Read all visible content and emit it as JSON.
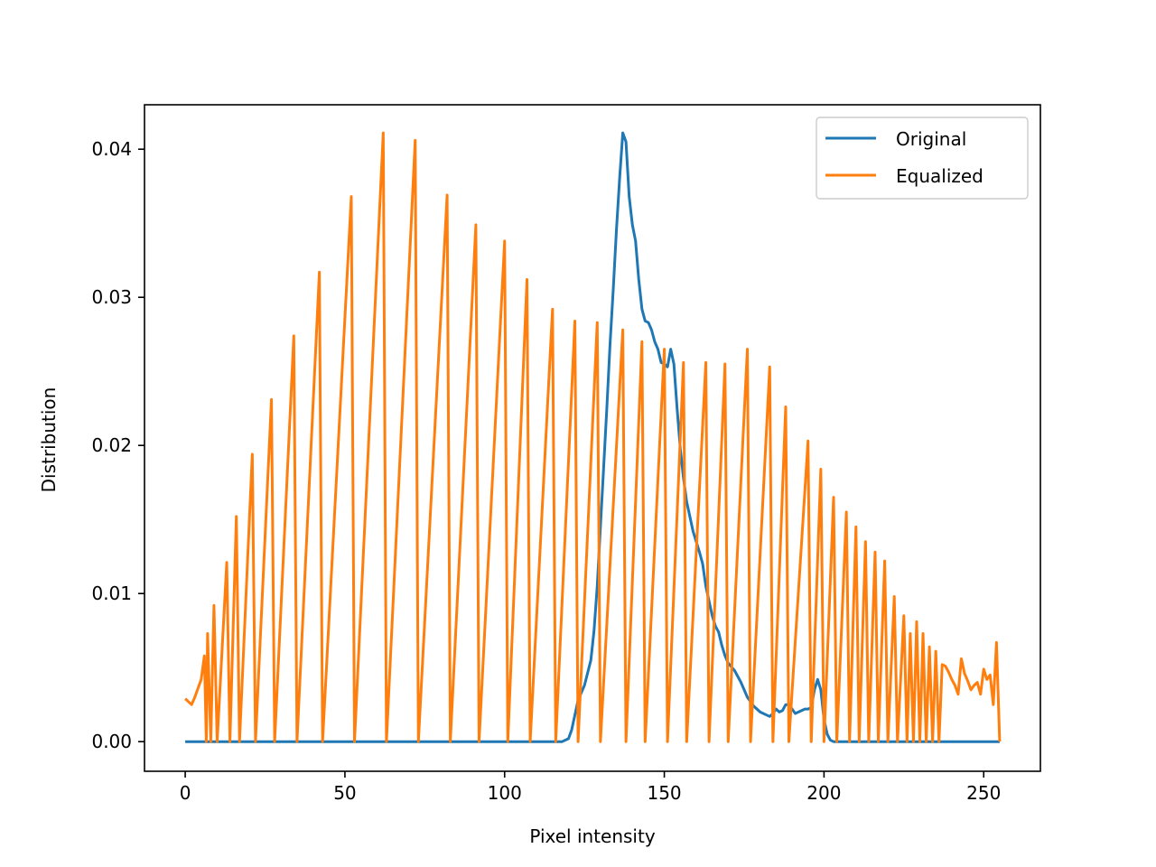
{
  "chart_data": {
    "type": "line",
    "title": "",
    "xlabel": "Pixel intensity",
    "ylabel": "Distribution",
    "xlim": [
      -12.75,
      267.75
    ],
    "ylim": [
      -0.002,
      0.043
    ],
    "x_ticks": [
      0,
      50,
      100,
      150,
      200,
      250
    ],
    "y_ticks": [
      0.0,
      0.01,
      0.02,
      0.03,
      0.04
    ],
    "x_tick_labels": [
      "0",
      "50",
      "100",
      "150",
      "200",
      "250"
    ],
    "y_tick_labels": [
      "0.00",
      "0.01",
      "0.02",
      "0.03",
      "0.04"
    ],
    "grid": false,
    "legend_position": "top-right",
    "series": [
      {
        "name": "Original",
        "color": "#1f77b4",
        "points": [
          [
            0,
            0
          ],
          [
            118,
            0
          ],
          [
            120,
            0.0002
          ],
          [
            121,
            0.0008
          ],
          [
            122,
            0.0018
          ],
          [
            123,
            0.0028
          ],
          [
            125,
            0.0038
          ],
          [
            127,
            0.0055
          ],
          [
            128,
            0.0075
          ],
          [
            129,
            0.0105
          ],
          [
            130,
            0.0145
          ],
          [
            131,
            0.0185
          ],
          [
            132,
            0.0225
          ],
          [
            133,
            0.0268
          ],
          [
            134,
            0.0305
          ],
          [
            135,
            0.0345
          ],
          [
            136,
            0.038
          ],
          [
            137,
            0.0411
          ],
          [
            138,
            0.0405
          ],
          [
            139,
            0.0368
          ],
          [
            140,
            0.0349
          ],
          [
            141,
            0.0338
          ],
          [
            142,
            0.0312
          ],
          [
            143,
            0.0292
          ],
          [
            144,
            0.0284
          ],
          [
            145,
            0.0283
          ],
          [
            146,
            0.0278
          ],
          [
            147,
            0.027
          ],
          [
            148,
            0.0265
          ],
          [
            149,
            0.0256
          ],
          [
            150,
            0.0255
          ],
          [
            151,
            0.0253
          ],
          [
            152,
            0.0265
          ],
          [
            153,
            0.0255
          ],
          [
            154,
            0.0225
          ],
          [
            155,
            0.0198
          ],
          [
            156,
            0.0178
          ],
          [
            157,
            0.0162
          ],
          [
            158,
            0.0152
          ],
          [
            159,
            0.0142
          ],
          [
            160,
            0.0135
          ],
          [
            161,
            0.0128
          ],
          [
            162,
            0.012
          ],
          [
            163,
            0.0105
          ],
          [
            164,
            0.0095
          ],
          [
            165,
            0.0085
          ],
          [
            166,
            0.0078
          ],
          [
            167,
            0.0074
          ],
          [
            168,
            0.0065
          ],
          [
            169,
            0.0058
          ],
          [
            170,
            0.0053
          ],
          [
            172,
            0.0048
          ],
          [
            174,
            0.004
          ],
          [
            176,
            0.003
          ],
          [
            178,
            0.0024
          ],
          [
            180,
            0.002
          ],
          [
            182,
            0.0018
          ],
          [
            183,
            0.0017
          ],
          [
            184,
            0.0019
          ],
          [
            185,
            0.0022
          ],
          [
            186,
            0.002
          ],
          [
            187,
            0.0021
          ],
          [
            188,
            0.0025
          ],
          [
            189,
            0.0025
          ],
          [
            190,
            0.0022
          ],
          [
            191,
            0.0019
          ],
          [
            192,
            0.002
          ],
          [
            193,
            0.0021
          ],
          [
            194,
            0.0022
          ],
          [
            195,
            0.0022
          ],
          [
            196,
            0.0023
          ],
          [
            197,
            0.0035
          ],
          [
            198,
            0.0042
          ],
          [
            199,
            0.0035
          ],
          [
            200,
            0.0015
          ],
          [
            201,
            0.0005
          ],
          [
            202,
            0.0001
          ],
          [
            203,
            0
          ],
          [
            255,
            0
          ]
        ]
      },
      {
        "name": "Equalized",
        "color": "#ff7f0e",
        "points": [
          [
            0,
            0.0029
          ],
          [
            1,
            0.0027
          ],
          [
            2,
            0.0025
          ],
          [
            3,
            0.003
          ],
          [
            4,
            0.0036
          ],
          [
            5,
            0.0042
          ],
          [
            6,
            0.0058
          ],
          [
            6.6,
            0
          ],
          [
            7,
            0.0073
          ],
          [
            8,
            0
          ],
          [
            9,
            0.0092
          ],
          [
            10,
            0
          ],
          [
            13,
            0.0121
          ],
          [
            14,
            0
          ],
          [
            16,
            0.0152
          ],
          [
            17,
            0
          ],
          [
            21,
            0.0194
          ],
          [
            22,
            0
          ],
          [
            27,
            0.0231
          ],
          [
            28,
            0
          ],
          [
            34,
            0.0274
          ],
          [
            35,
            0
          ],
          [
            42,
            0.0317
          ],
          [
            43,
            0
          ],
          [
            52,
            0.0368
          ],
          [
            53,
            0
          ],
          [
            62,
            0.0411
          ],
          [
            63,
            0
          ],
          [
            72,
            0.0406
          ],
          [
            73,
            0
          ],
          [
            82,
            0.0369
          ],
          [
            83,
            0
          ],
          [
            91,
            0.0349
          ],
          [
            92,
            0
          ],
          [
            100,
            0.0338
          ],
          [
            101,
            0
          ],
          [
            107,
            0.0312
          ],
          [
            108,
            0
          ],
          [
            115,
            0.0292
          ],
          [
            116,
            0
          ],
          [
            122,
            0.0284
          ],
          [
            123,
            0
          ],
          [
            129,
            0.0283
          ],
          [
            130,
            0
          ],
          [
            137,
            0.0278
          ],
          [
            138,
            0
          ],
          [
            143,
            0.027
          ],
          [
            144,
            0
          ],
          [
            150,
            0.0265
          ],
          [
            151,
            0
          ],
          [
            156,
            0.0256
          ],
          [
            157,
            0
          ],
          [
            163,
            0.0256
          ],
          [
            164,
            0
          ],
          [
            169,
            0.0255
          ],
          [
            170,
            0
          ],
          [
            176,
            0.0265
          ],
          [
            177,
            0
          ],
          [
            183,
            0.0253
          ],
          [
            184,
            0
          ],
          [
            188,
            0.0226
          ],
          [
            189,
            0
          ],
          [
            195,
            0.0203
          ],
          [
            196,
            0
          ],
          [
            199,
            0.0184
          ],
          [
            200,
            0
          ],
          [
            203,
            0.0165
          ],
          [
            204,
            0
          ],
          [
            207,
            0.0155
          ],
          [
            208,
            0
          ],
          [
            210,
            0.0145
          ],
          [
            211,
            0
          ],
          [
            213,
            0.0135
          ],
          [
            214,
            0
          ],
          [
            216,
            0.0128
          ],
          [
            217,
            0
          ],
          [
            219,
            0.0122
          ],
          [
            220,
            0
          ],
          [
            222,
            0.0098
          ],
          [
            223,
            0
          ],
          [
            225,
            0.0085
          ],
          [
            226,
            0
          ],
          [
            227,
            0.0073
          ],
          [
            228,
            0
          ],
          [
            229,
            0.0081
          ],
          [
            230,
            0
          ],
          [
            231,
            0.0073
          ],
          [
            232,
            0
          ],
          [
            233,
            0.0064
          ],
          [
            234,
            0
          ],
          [
            235,
            0.0061
          ],
          [
            236,
            0
          ],
          [
            237,
            0.0052
          ],
          [
            238,
            0.0051
          ],
          [
            239,
            0.0047
          ],
          [
            240,
            0.0042
          ],
          [
            241,
            0.0038
          ],
          [
            242,
            0.0032
          ],
          [
            243,
            0.0056
          ],
          [
            244,
            0.0046
          ],
          [
            245,
            0.0041
          ],
          [
            246,
            0.0035
          ],
          [
            247,
            0.0038
          ],
          [
            248,
            0.004
          ],
          [
            249,
            0.0032
          ],
          [
            250,
            0.0049
          ],
          [
            251,
            0.0042
          ],
          [
            252,
            0.0045
          ],
          [
            253,
            0.0025
          ],
          [
            254,
            0.0067
          ],
          [
            255,
            0
          ]
        ]
      }
    ]
  }
}
